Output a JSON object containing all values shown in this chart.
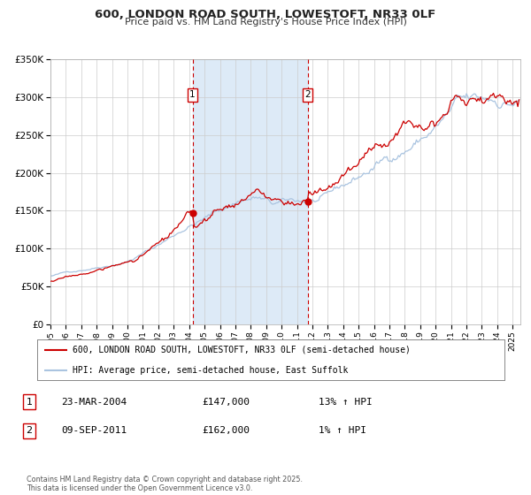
{
  "title": "600, LONDON ROAD SOUTH, LOWESTOFT, NR33 0LF",
  "subtitle": "Price paid vs. HM Land Registry's House Price Index (HPI)",
  "ylim": [
    0,
    350000
  ],
  "ytick_labels": [
    "£0",
    "£50K",
    "£100K",
    "£150K",
    "£200K",
    "£250K",
    "£300K",
    "£350K"
  ],
  "ytick_values": [
    0,
    50000,
    100000,
    150000,
    200000,
    250000,
    300000,
    350000
  ],
  "xlim_start": 1995.0,
  "xlim_end": 2025.5,
  "hpi_color": "#aac4e0",
  "price_color": "#cc0000",
  "sale1_x": 2004.22,
  "sale1_y": 147000,
  "sale2_x": 2011.69,
  "sale2_y": 162000,
  "shade_color": "#ddeaf7",
  "legend_line1": "600, LONDON ROAD SOUTH, LOWESTOFT, NR33 0LF (semi-detached house)",
  "legend_line2": "HPI: Average price, semi-detached house, East Suffolk",
  "table_row1": [
    "1",
    "23-MAR-2004",
    "£147,000",
    "13% ↑ HPI"
  ],
  "table_row2": [
    "2",
    "09-SEP-2011",
    "£162,000",
    "1% ↑ HPI"
  ],
  "footnote": "Contains HM Land Registry data © Crown copyright and database right 2025.\nThis data is licensed under the Open Government Licence v3.0.",
  "background_color": "#ffffff",
  "grid_color": "#cccccc"
}
